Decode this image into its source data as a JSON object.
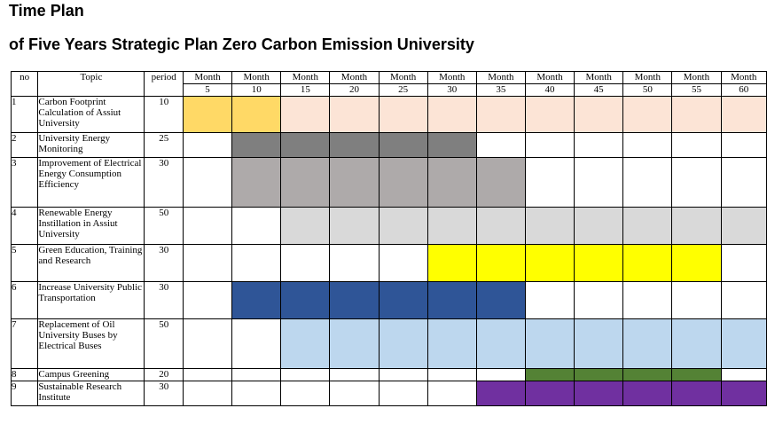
{
  "title": "Time Plan",
  "subtitle": "of Five Years Strategic Plan Zero Carbon Emission University",
  "headers": {
    "no": "no",
    "topic": "Topic",
    "period": "period",
    "month_word": "Month"
  },
  "months": [
    "5",
    "10",
    "15",
    "20",
    "25",
    "30",
    "35",
    "40",
    "45",
    "50",
    "55",
    "60"
  ],
  "colors": {
    "light_yellow": "#ffd966",
    "peach": "#fce4d6",
    "dark_gray": "#7f7f7f",
    "mid_gray": "#aeaaaa",
    "light_gray": "#d9d9d9",
    "yellow": "#ffff00",
    "dark_blue": "#2f5597",
    "light_blue": "#bdd7ee",
    "green": "#548235",
    "purple": "#7030a0"
  },
  "rows": [
    {
      "no": "1",
      "topic": "Carbon Footprint Calculation of Assiut University",
      "period": "10",
      "cells": [
        "light_yellow",
        "light_yellow",
        "peach",
        "peach",
        "peach",
        "peach",
        "peach",
        "peach",
        "peach",
        "peach",
        "peach",
        "peach"
      ]
    },
    {
      "no": "2",
      "topic": "University Energy Monitoring",
      "period": "25",
      "cells": [
        "",
        "dark_gray",
        "dark_gray",
        "dark_gray",
        "dark_gray",
        "dark_gray",
        "",
        "",
        "",
        "",
        "",
        ""
      ]
    },
    {
      "no": "3",
      "topic": "Improvement of Electrical Energy Consumption Efficiency",
      "period": "30",
      "cells": [
        "",
        "mid_gray",
        "mid_gray",
        "mid_gray",
        "mid_gray",
        "mid_gray",
        "mid_gray",
        "",
        "",
        "",
        "",
        ""
      ]
    },
    {
      "no": "4",
      "topic": "Renewable Energy Instillation in Assiut University",
      "period": "50",
      "cells": [
        "",
        "",
        "light_gray",
        "light_gray",
        "light_gray",
        "light_gray",
        "light_gray",
        "light_gray",
        "light_gray",
        "light_gray",
        "light_gray",
        "light_gray"
      ]
    },
    {
      "no": "5",
      "topic": "Green Education, Training and Research",
      "period": "30",
      "cells": [
        "",
        "",
        "",
        "",
        "",
        "yellow",
        "yellow",
        "yellow",
        "yellow",
        "yellow",
        "yellow",
        ""
      ]
    },
    {
      "no": "6",
      "topic": "Increase University Public Transportation",
      "period": "30",
      "cells": [
        "",
        "dark_blue",
        "dark_blue",
        "dark_blue",
        "dark_blue",
        "dark_blue",
        "dark_blue",
        "",
        "",
        "",
        "",
        ""
      ]
    },
    {
      "no": "7",
      "topic": "Replacement of Oil University Buses by Electrical Buses",
      "period": "50",
      "cells": [
        "",
        "",
        "light_blue",
        "light_blue",
        "light_blue",
        "light_blue",
        "light_blue",
        "light_blue",
        "light_blue",
        "light_blue",
        "light_blue",
        "light_blue"
      ]
    },
    {
      "no": "8",
      "topic": "Campus Greening",
      "period": "20",
      "cells": [
        "",
        "",
        "",
        "",
        "",
        "",
        "",
        "green",
        "green",
        "green",
        "green",
        ""
      ]
    },
    {
      "no": "9",
      "topic": "Sustainable Research Institute",
      "period": "30",
      "cells": [
        "",
        "",
        "",
        "",
        "",
        "",
        "purple",
        "purple",
        "purple",
        "purple",
        "purple",
        "purple"
      ]
    }
  ]
}
